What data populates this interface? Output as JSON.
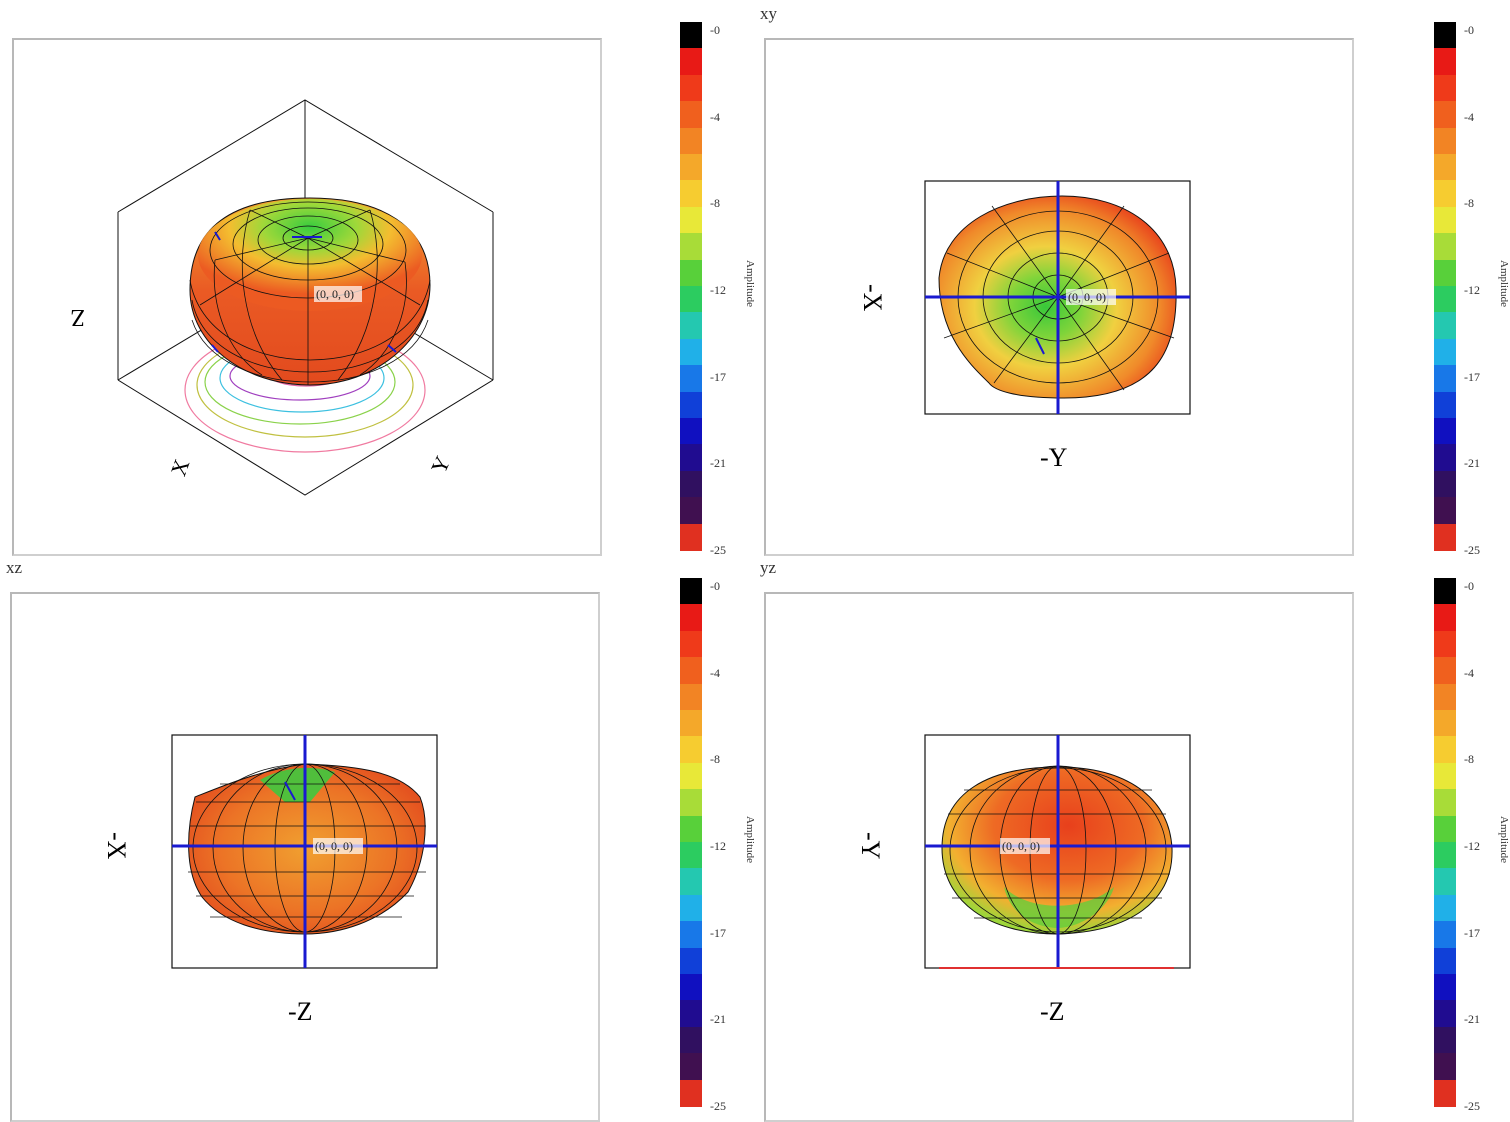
{
  "chart_data": [
    {
      "type": "3d-surface",
      "view": "perspective",
      "title": "",
      "axis_labels": [
        "Z",
        "X",
        "Y"
      ],
      "origin_label": "(0, 0, 0)",
      "colorbar": {
        "title": "Amplitude",
        "ticks": [
          "-0",
          "-4",
          "-8",
          "-12",
          "-17",
          "-21",
          "-25"
        ],
        "range": [
          -25,
          0
        ]
      }
    },
    {
      "type": "3d-surface",
      "view": "xy",
      "title": "xy",
      "axis_labels": [
        "-X",
        "-Y"
      ],
      "origin_label": "(0, 0, 0)",
      "colorbar": {
        "title": "Amplitude",
        "ticks": [
          "-0",
          "-4",
          "-8",
          "-12",
          "-17",
          "-21",
          "-25"
        ],
        "range": [
          -25,
          0
        ]
      }
    },
    {
      "type": "3d-surface",
      "view": "xz",
      "title": "xz",
      "axis_labels": [
        "-X",
        "-Z"
      ],
      "origin_label": "(0, 0, 0)",
      "colorbar": {
        "title": "Amplitude",
        "ticks": [
          "-0",
          "-4",
          "-8",
          "-12",
          "-17",
          "-21",
          "-25"
        ],
        "range": [
          -25,
          0
        ]
      }
    },
    {
      "type": "3d-surface",
      "view": "yz",
      "title": "yz",
      "axis_labels": [
        "-Y",
        "-Z"
      ],
      "origin_label": "(0, 0, 0)",
      "colorbar": {
        "title": "Amplitude",
        "ticks": [
          "-0",
          "-4",
          "-8",
          "-12",
          "-17",
          "-21",
          "-25"
        ],
        "range": [
          -25,
          0
        ]
      }
    }
  ],
  "colors": {
    "surface_high": "#e8401c",
    "surface_mid": "#f0a02a",
    "surface_low": "#38c83a",
    "axis_line": "#1a1ad0",
    "grid_line": "#111111"
  }
}
